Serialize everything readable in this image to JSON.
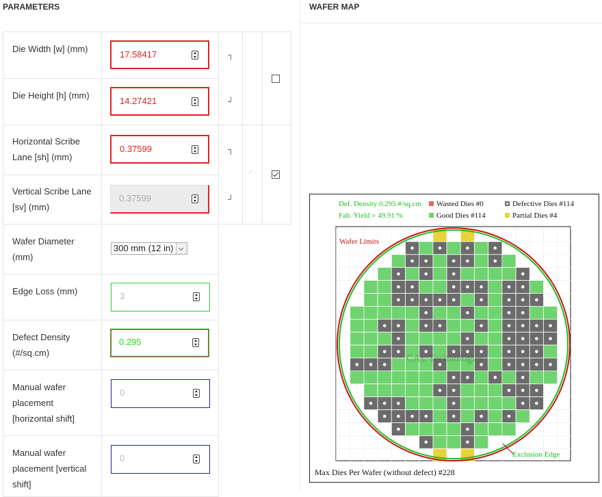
{
  "headers": {
    "parameters": "PARAMETERS",
    "wafer_map": "WAFER MAP"
  },
  "fields": {
    "die_width": {
      "label": "Die Width [w] (mm)",
      "value": "17.58417"
    },
    "die_height": {
      "label": "Die Height [h] (mm)",
      "value": "14.27421"
    },
    "h_scribe": {
      "label": "Horizontal Scribe Lane [sh] (mm)",
      "value": "0.37599"
    },
    "v_scribe": {
      "label": "Vertical Scribe Lane [sv] (mm)",
      "value": "0.37599"
    },
    "wafer_diameter": {
      "label": "Wafer Diameter (mm)",
      "selected": "300 mm (12 in)"
    },
    "edge_loss": {
      "label": "Edge Loss (mm)",
      "value": "3"
    },
    "defect_density": {
      "label": "Defect Density (#/sq.cm)",
      "value": "0.295"
    },
    "h_shift": {
      "label": "Manual wafer placement [horizontal shift]",
      "value": "0"
    },
    "v_shift": {
      "label": "Manual wafer placement [vertical shift]",
      "value": "0"
    }
  },
  "checkboxes": {
    "lock_die_ratio": false,
    "lock_scribe": true
  },
  "wafer_map": {
    "def_density": "Def. Density 0.295 #/sq.cm",
    "fab_yield": "Fab. Yield = 49.91 %",
    "wasted": "Wasted Dies  #0",
    "defective": "Defective Dies  #114",
    "good": "Good Dies #114",
    "partial": "Partial Dies #4",
    "wafer_limits": "Wafer Limits",
    "exclusion_edge": "Exclusion Edge",
    "watermark": "CAL Technologies",
    "max_dies": "Max Dies Per Wafer (without defect) #228",
    "colors": {
      "good": "#6fd36f",
      "defective": "#6b6b6b",
      "partial": "#e6d43a",
      "wasted": "#f06262",
      "limits": "#c81414",
      "exclusion": "#1fbf1f"
    }
  }
}
